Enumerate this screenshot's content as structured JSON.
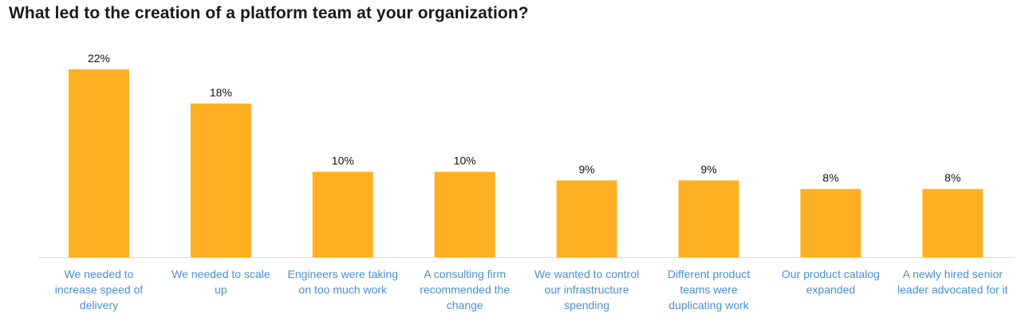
{
  "chart_data": {
    "type": "bar",
    "title": "What led to the creation of a platform team at your organization?",
    "categories": [
      [
        "We needed to",
        "increase speed of",
        "delivery"
      ],
      [
        "We needed to scale",
        "up"
      ],
      [
        "Engineers were taking",
        "on too much work"
      ],
      [
        "A consulting firm",
        "recommended the",
        "change"
      ],
      [
        "We wanted to control",
        "our infrastructure",
        "spending"
      ],
      [
        "Different product",
        "teams were",
        "duplicating work"
      ],
      [
        "Our product catalog",
        "expanded"
      ],
      [
        "A newly hired senior",
        "leader advocated for it"
      ]
    ],
    "values": [
      22,
      18,
      10,
      10,
      9,
      9,
      8,
      8
    ],
    "value_labels": [
      "22%",
      "18%",
      "10%",
      "10%",
      "9%",
      "9%",
      "8%",
      "8%"
    ],
    "unit": "%",
    "xlabel": "",
    "ylabel": "",
    "ylim": [
      0,
      22
    ],
    "grid": false,
    "legend": "none",
    "colors": {
      "bar": "#FDB022",
      "axis": "#d9d9d9",
      "category_text": "#4a8fd0",
      "value_text": "#111111",
      "title_text": "#1a1a1a"
    }
  }
}
